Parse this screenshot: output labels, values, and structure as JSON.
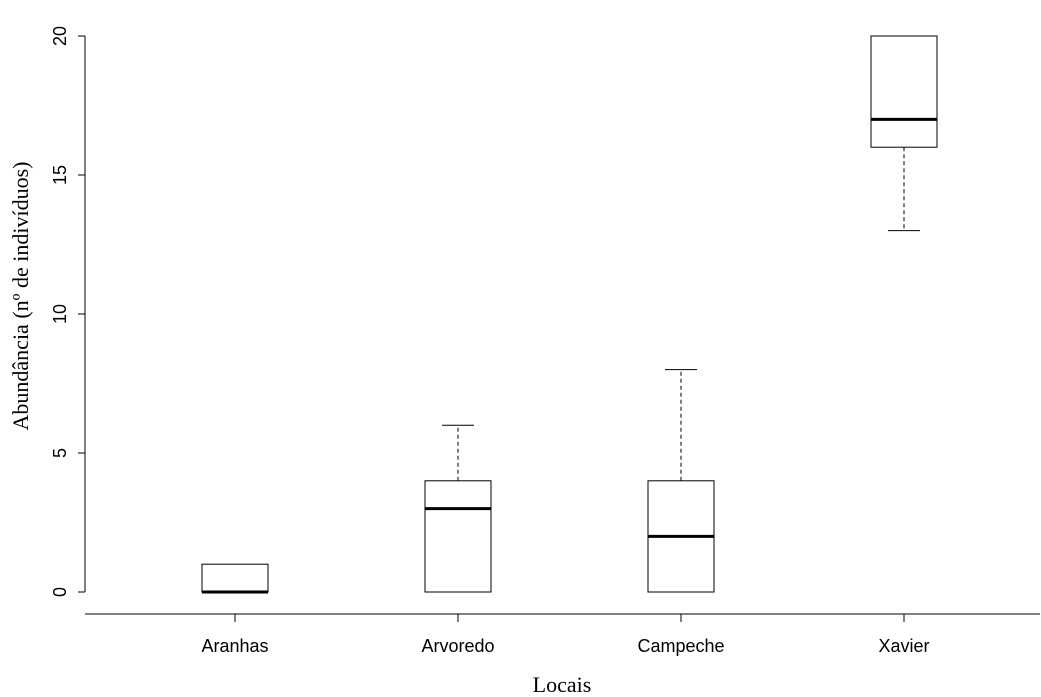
{
  "chart_data": {
    "type": "boxplot",
    "xlabel": "Locais",
    "ylabel": "Abundância (nº de indivíduos)",
    "categories": [
      "Aranhas",
      "Arvoredo",
      "Campeche",
      "Xavier"
    ],
    "boxes": [
      {
        "name": "Aranhas",
        "whisker_low": 0,
        "q1": 0,
        "median": 0,
        "q3": 1,
        "whisker_high": 1
      },
      {
        "name": "Arvoredo",
        "whisker_low": 0,
        "q1": 0,
        "median": 3,
        "q3": 4,
        "whisker_high": 6
      },
      {
        "name": "Campeche",
        "whisker_low": 0,
        "q1": 0,
        "median": 2,
        "q3": 4,
        "whisker_high": 8
      },
      {
        "name": "Xavier",
        "whisker_low": 13,
        "q1": 16,
        "median": 17,
        "q3": 20,
        "whisker_high": 20
      }
    ],
    "yticks": [
      0,
      5,
      10,
      15,
      20
    ],
    "ylim": [
      -0.8,
      20.8
    ],
    "grid": false,
    "legend": "none",
    "colors": {
      "box_fill": "#ffffff",
      "stroke": "#000000"
    }
  }
}
